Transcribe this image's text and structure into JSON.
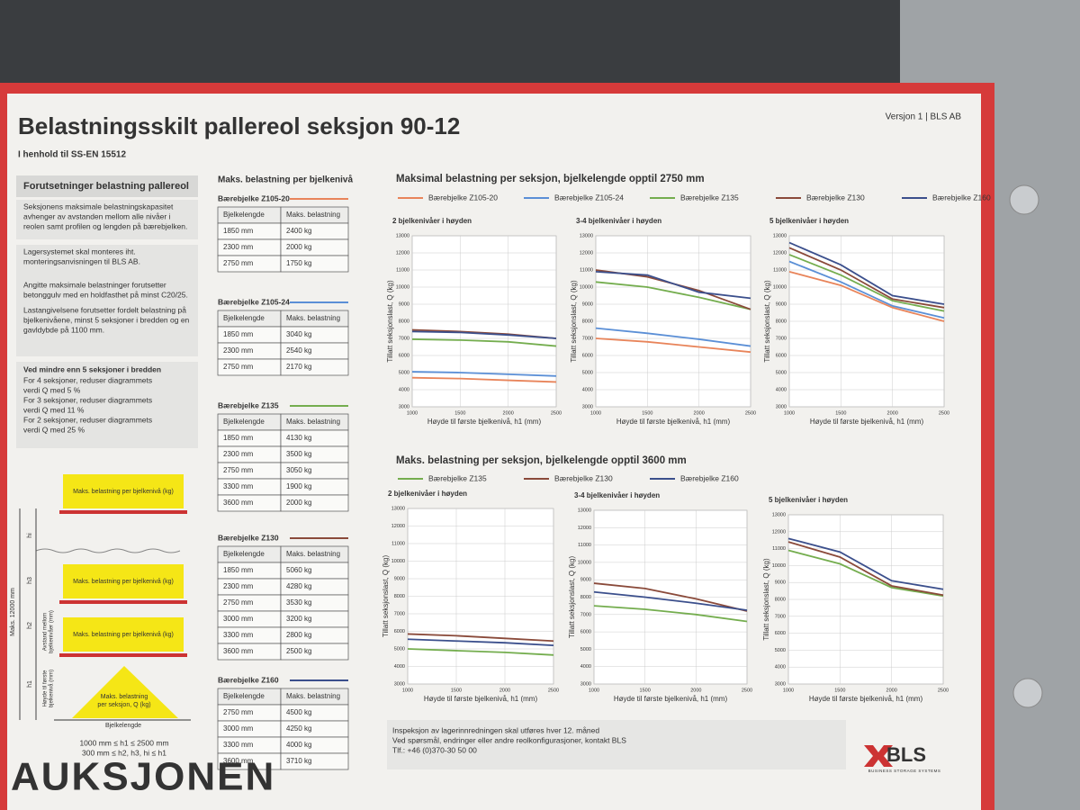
{
  "header": {
    "title": "Belastningsskilt pallereol seksjon 90-12",
    "subtitle": "I henhold til SS-EN 15512",
    "version": "Versjon 1 | BLS AB"
  },
  "assumptions": {
    "heading": "Forutsetninger belastning pallereol",
    "paragraphs": [
      [
        "Seksjonens maksimale belastningskapasitet",
        "avhenger av avstanden mellom alle nivåer i",
        "reolen samt profilen og lengden på bærebjelken."
      ],
      [
        "Lagersystemet skal monteres iht.",
        "monteringsanvisningen til BLS AB."
      ],
      [
        "Angitte maksimale belastninger forutsetter",
        "betonggulv med en holdfasthet på minst C20/25."
      ],
      [
        "Lastangivelsene forutsetter fordelt belastning på",
        "bjelkenivåene, minst 5 seksjoner i bredden og en",
        "gavldybde på 1100 mm."
      ]
    ],
    "note": {
      "heading": "Ved mindre enn 5 seksjoner i bredden",
      "lines": [
        "For 4 seksjoner, reduser diagrammets",
        "verdi Q med 5 %",
        "For 3 seksjoner, reduser diagrammets",
        "verdi Q med 11 %",
        "For 2 seksjoner, reduser diagrammets",
        "verdi Q med 25 %"
      ]
    }
  },
  "diagram": {
    "level_box": "Maks. belastning per bjelkenivå (kg)",
    "section_box": [
      "Maks. belastning",
      "per seksjon, Q (kg)"
    ],
    "levels": [
      "hi",
      "h3",
      "h2",
      "h1"
    ],
    "max_height": "Maks. 12000 mm",
    "spacing_label": [
      "Avstand mellom",
      "bjelkenivåer (mm)"
    ],
    "first_label": [
      "Høyde til første",
      "bjelkenivå (mm)"
    ],
    "beam_length": "Bjelkelengde",
    "constraints": [
      "1000 mm ≤ h1 ≤ 2500 mm",
      "300 mm ≤ h2, h3, hi ≤ h1"
    ]
  },
  "tables": {
    "heading": "Maks. belastning per bjelkenivå",
    "items": [
      {
        "name": "Bærebjelke Z105-20",
        "color": "#e8845a",
        "columns": [
          "Bjelkelengde",
          "Maks. belastning"
        ],
        "rows": [
          [
            "1850 mm",
            "2400 kg"
          ],
          [
            "2300 mm",
            "2000 kg"
          ],
          [
            "2750 mm",
            "1750 kg"
          ]
        ]
      },
      {
        "name": "Bærebjelke Z105-24",
        "color": "#5b8fd6",
        "columns": [
          "Bjelkelengde",
          "Maks. belastning"
        ],
        "rows": [
          [
            "1850 mm",
            "3040 kg"
          ],
          [
            "2300 mm",
            "2540 kg"
          ],
          [
            "2750 mm",
            "2170 kg"
          ]
        ]
      },
      {
        "name": "Bærebjelke Z135",
        "color": "#74ad4e",
        "columns": [
          "Bjelkelengde",
          "Maks. belastning"
        ],
        "rows": [
          [
            "1850 mm",
            "4130 kg"
          ],
          [
            "2300 mm",
            "3500 kg"
          ],
          [
            "2750 mm",
            "3050 kg"
          ],
          [
            "3300 mm",
            "1900 kg"
          ],
          [
            "3600 mm",
            "2000 kg"
          ]
        ]
      },
      {
        "name": "Bærebjelke Z130",
        "color": "#8a4a3a",
        "columns": [
          "Bjelkelengde",
          "Maks. belastning"
        ],
        "rows": [
          [
            "1850 mm",
            "5060 kg"
          ],
          [
            "2300 mm",
            "4280 kg"
          ],
          [
            "2750 mm",
            "3530 kg"
          ],
          [
            "3000 mm",
            "3200 kg"
          ],
          [
            "3300 mm",
            "2800 kg"
          ],
          [
            "3600 mm",
            "2500 kg"
          ]
        ]
      },
      {
        "name": "Bærebjelke Z160",
        "color": "#3b4f8c",
        "columns": [
          "Bjelkelengde",
          "Maks. belastning"
        ],
        "rows": [
          [
            "2750 mm",
            "4500 kg"
          ],
          [
            "3000 mm",
            "4250 kg"
          ],
          [
            "3300 mm",
            "4000 kg"
          ],
          [
            "3600 mm",
            "3710 kg"
          ]
        ]
      }
    ]
  },
  "sections": [
    {
      "title": "Maksimal belastning per seksjon, bjelkelengde opptil 2750 mm",
      "legend": [
        {
          "name": "Bærebjelke Z105-20",
          "color": "#e8845a"
        },
        {
          "name": "Bærebjelke Z105-24",
          "color": "#5b8fd6"
        },
        {
          "name": "Bærebjelke Z135",
          "color": "#74ad4e"
        },
        {
          "name": "Bærebjelke Z130",
          "color": "#8a4a3a"
        },
        {
          "name": "Bærebjelke Z160",
          "color": "#3b4f8c"
        }
      ]
    },
    {
      "title": "Maks. belastning per seksjon, bjelkelengde opptil 3600 mm",
      "legend": [
        {
          "name": "Bærebjelke Z135",
          "color": "#74ad4e"
        },
        {
          "name": "Bærebjelke Z130",
          "color": "#8a4a3a"
        },
        {
          "name": "Bærebjelke Z160",
          "color": "#3b4f8c"
        }
      ]
    }
  ],
  "chart_data": [
    {
      "type": "line",
      "title": "2 bjelkenivåer i høyden",
      "xlabel": "Høyde til første bjelkenivå, h1 (mm)",
      "ylabel": "Tillatt seksjonslast, Q (kg)",
      "x": [
        1000,
        1500,
        2000,
        2500
      ],
      "xlim": [
        1000,
        2500
      ],
      "xticks": [
        1000,
        1500,
        2000,
        2500
      ],
      "ylim": [
        3000,
        13000
      ],
      "yticks": [
        3000,
        4000,
        5000,
        6000,
        7000,
        8000,
        9000,
        10000,
        11000,
        12000,
        13000
      ],
      "grid": true,
      "series": [
        {
          "values": [
            4700,
            4650,
            4550,
            4450
          ]
        },
        {
          "values": [
            5050,
            5000,
            4900,
            4800
          ]
        },
        {
          "values": [
            6950,
            6900,
            6800,
            6550
          ]
        },
        {
          "values": [
            7500,
            7400,
            7250,
            7000
          ]
        },
        {
          "values": [
            7400,
            7350,
            7200,
            7000
          ]
        }
      ]
    },
    {
      "type": "line",
      "title": "3-4 bjelkenivåer i høyden",
      "xlabel": "Høyde til første bjelkenivå, h1 (mm)",
      "ylabel": "Tillatt seksjonslast, Q (kg)",
      "x": [
        1000,
        1500,
        2000,
        2500
      ],
      "xlim": [
        1000,
        2500
      ],
      "xticks": [
        1000,
        1500,
        2000,
        2500
      ],
      "ylim": [
        3000,
        13000
      ],
      "yticks": [
        3000,
        4000,
        5000,
        6000,
        7000,
        8000,
        9000,
        10000,
        11000,
        12000,
        13000
      ],
      "grid": true,
      "series": [
        {
          "values": [
            7000,
            6800,
            6500,
            6200
          ]
        },
        {
          "values": [
            7600,
            7300,
            6950,
            6550
          ]
        },
        {
          "values": [
            10300,
            10000,
            9400,
            8700
          ]
        },
        {
          "values": [
            11000,
            10600,
            9800,
            8700
          ]
        },
        {
          "values": [
            10900,
            10700,
            9700,
            9350
          ]
        }
      ]
    },
    {
      "type": "line",
      "title": "5 bjelkenivåer i høyden",
      "xlabel": "Høyde til første bjelkenivå, h1 (mm)",
      "ylabel": "Tillatt seksjonslast, Q (kg)",
      "x": [
        1000,
        1500,
        2000,
        2500
      ],
      "xlim": [
        1000,
        2500
      ],
      "xticks": [
        1000,
        1500,
        2000,
        2500
      ],
      "ylim": [
        3000,
        13000
      ],
      "yticks": [
        3000,
        4000,
        5000,
        6000,
        7000,
        8000,
        9000,
        10000,
        11000,
        12000,
        13000
      ],
      "grid": true,
      "series": [
        {
          "values": [
            10900,
            10100,
            8800,
            8000
          ]
        },
        {
          "values": [
            11500,
            10300,
            8900,
            8200
          ]
        },
        {
          "values": [
            11900,
            10700,
            9200,
            8600
          ]
        },
        {
          "values": [
            12300,
            11000,
            9300,
            8800
          ]
        },
        {
          "values": [
            12600,
            11300,
            9500,
            9000
          ]
        }
      ]
    },
    {
      "type": "line",
      "title": "2 bjelkenivåer i høyden",
      "xlabel": "Høyde til første bjelkenivå, h1 (mm)",
      "ylabel": "Tillatt seksjonslast, Q (kg)",
      "x": [
        1000,
        1500,
        2000,
        2500
      ],
      "xlim": [
        1000,
        2500
      ],
      "xticks": [
        1000,
        1500,
        2000,
        2500
      ],
      "ylim": [
        3000,
        13000
      ],
      "yticks": [
        3000,
        4000,
        5000,
        6000,
        7000,
        8000,
        9000,
        10000,
        11000,
        12000,
        13000
      ],
      "grid": true,
      "series": [
        {
          "values": [
            5000,
            4900,
            4800,
            4650
          ]
        },
        {
          "values": [
            5850,
            5750,
            5600,
            5450
          ]
        },
        {
          "values": [
            5550,
            5450,
            5350,
            5200
          ]
        }
      ]
    },
    {
      "type": "line",
      "title": "3-4 bjelkenivåer i høyden",
      "xlabel": "Høyde til første bjelkenivå, h1 (mm)",
      "ylabel": "Tillatt seksjonslast, Q (kg)",
      "x": [
        1000,
        1500,
        2000,
        2500
      ],
      "xlim": [
        1000,
        2500
      ],
      "xticks": [
        1000,
        1500,
        2000,
        2500
      ],
      "ylim": [
        3000,
        13000
      ],
      "yticks": [
        3000,
        4000,
        5000,
        6000,
        7000,
        8000,
        9000,
        10000,
        11000,
        12000,
        13000
      ],
      "grid": true,
      "series": [
        {
          "values": [
            7500,
            7300,
            7000,
            6600
          ]
        },
        {
          "values": [
            8800,
            8500,
            7900,
            7200
          ]
        },
        {
          "values": [
            8300,
            8000,
            7650,
            7250
          ]
        }
      ]
    },
    {
      "type": "line",
      "title": "5 bjelkenivåer i høyden",
      "xlabel": "Høyde til første bjelkenivå, h1 (mm)",
      "ylabel": "Tillatt seksjonslast, Q (kg)",
      "x": [
        1000,
        1500,
        2000,
        2500
      ],
      "xlim": [
        1000,
        2500
      ],
      "xticks": [
        1000,
        1500,
        2000,
        2500
      ],
      "ylim": [
        3000,
        13000
      ],
      "yticks": [
        3000,
        4000,
        5000,
        6000,
        7000,
        8000,
        9000,
        10000,
        11000,
        12000,
        13000
      ],
      "grid": true,
      "series": [
        {
          "values": [
            10900,
            10100,
            8700,
            8200
          ]
        },
        {
          "values": [
            11400,
            10500,
            8800,
            8250
          ]
        },
        {
          "values": [
            11600,
            10800,
            9100,
            8600
          ]
        }
      ]
    }
  ],
  "footer": {
    "lines": [
      "Inspeksjon av lagerinnredningen skal utføres hver 12. måned",
      "Ved spørsmål, endringer eller andre reolkonfigurasjoner, kontakt BLS",
      "Tlf.: +46 (0)370-30 50 00"
    ],
    "logo": "BLS",
    "logo_tagline": "BUSINESS STORAGE SYSTEMS"
  },
  "watermark": "AUKSJONEN"
}
